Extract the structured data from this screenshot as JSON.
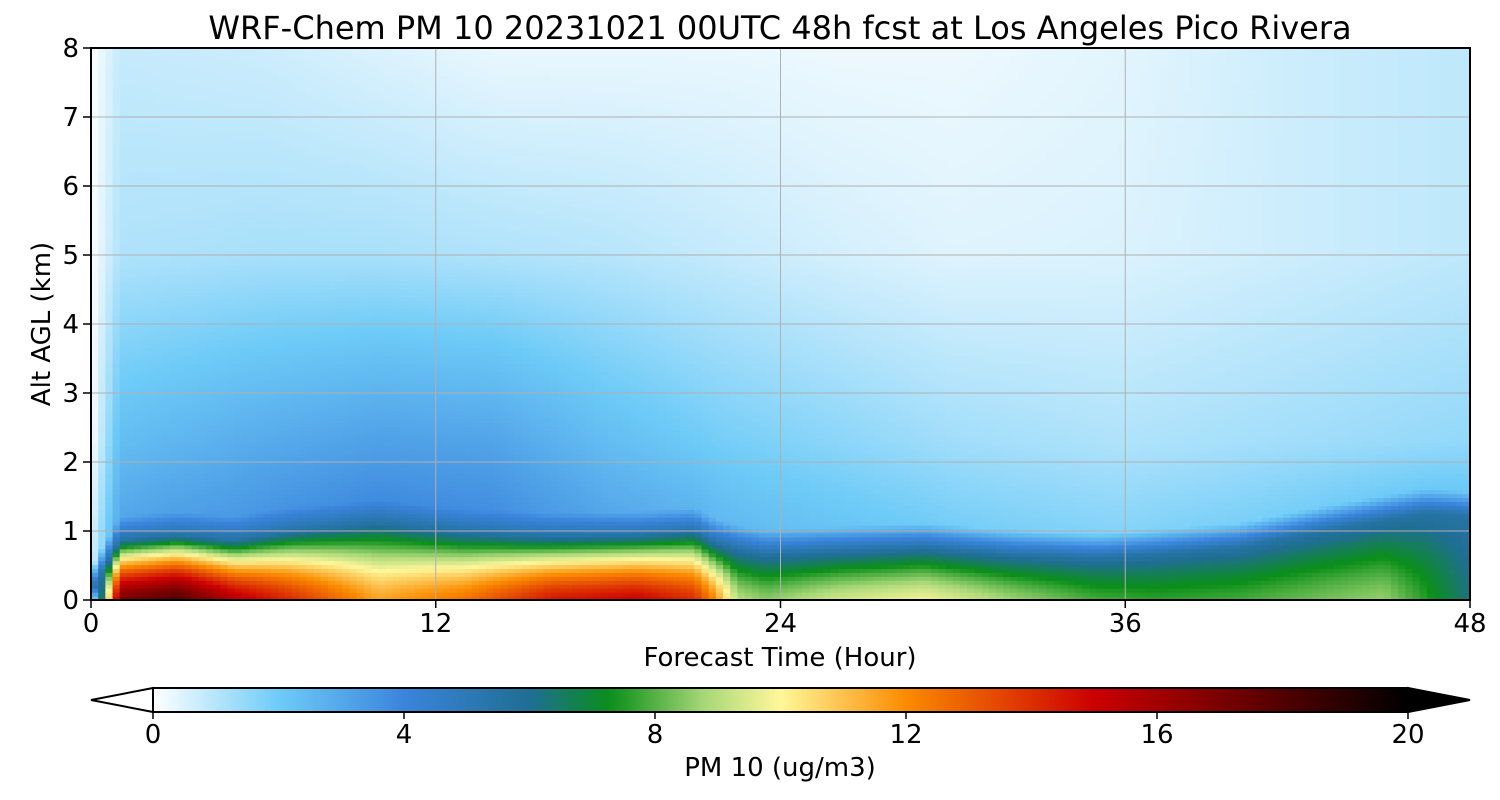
{
  "chart_data": {
    "type": "heatmap",
    "title": "WRF-Chem PM 10  20231021 00UTC 48h fcst at Los Angeles Pico Rivera",
    "xlabel": "Forecast Time (Hour)",
    "ylabel": "Alt AGL (km)",
    "xlim": [
      0,
      48
    ],
    "ylim": [
      0,
      8
    ],
    "x_ticks": [
      "0",
      "12",
      "24",
      "36",
      "48"
    ],
    "y_ticks": [
      "0",
      "1",
      "2",
      "3",
      "4",
      "5",
      "6",
      "7",
      "8"
    ],
    "grid": true,
    "colorbar": {
      "label": "PM 10  (ug/m3)",
      "range": [
        0,
        20
      ],
      "ticks": [
        "0",
        "4",
        "8",
        "12",
        "16",
        "20"
      ],
      "extend": "both",
      "colors": [
        {
          "v": 0,
          "c": "#ffffff"
        },
        {
          "v": 2,
          "c": "#6ecbf7"
        },
        {
          "v": 4,
          "c": "#3a84dc"
        },
        {
          "v": 6,
          "c": "#1f6e93"
        },
        {
          "v": 7.3,
          "c": "#0b8f19"
        },
        {
          "v": 8.8,
          "c": "#a9d879"
        },
        {
          "v": 10,
          "c": "#fff79a"
        },
        {
          "v": 12,
          "c": "#fb8b00"
        },
        {
          "v": 15,
          "c": "#cc0000"
        },
        {
          "v": 17,
          "c": "#7a0000"
        },
        {
          "v": 20,
          "c": "#000000"
        }
      ]
    },
    "surface_profile": {
      "hours": [
        0,
        1,
        3,
        5,
        7,
        10,
        13,
        16,
        19,
        21,
        21.7,
        22.5,
        23.5,
        26,
        29,
        32,
        35,
        37,
        40,
        43,
        45,
        46.5,
        48
      ],
      "surface_value": [
        0,
        17,
        18,
        15.5,
        14,
        11.5,
        12.5,
        14.5,
        15,
        14,
        12,
        9,
        8.5,
        9.3,
        9.8,
        8.7,
        7.8,
        7.6,
        7.8,
        8.3,
        8.6,
        7.5,
        6.2
      ],
      "mixing_height_km": [
        0,
        0.75,
        0.82,
        0.75,
        0.88,
        0.98,
        0.85,
        0.8,
        0.82,
        0.88,
        0.72,
        0.62,
        0.55,
        0.6,
        0.65,
        0.55,
        0.5,
        0.55,
        0.65,
        0.9,
        1.05,
        1.15,
        1.1
      ]
    },
    "aloft_value": {
      "hours": [
        0,
        1,
        6,
        10,
        14,
        18,
        22,
        26,
        30,
        36,
        42,
        48
      ],
      "value_2km": [
        0,
        2.4,
        2.9,
        3.2,
        3.1,
        2.4,
        1.9,
        1.6,
        1.3,
        1.1,
        1.3,
        1.5
      ],
      "value_5km": [
        0,
        1.1,
        1.2,
        1.2,
        1.1,
        1.0,
        0.8,
        0.6,
        0.45,
        0.5,
        0.7,
        0.9
      ],
      "value_8km": [
        0,
        0.8,
        0.7,
        0.5,
        0.3,
        0.3,
        0.3,
        0.25,
        0.25,
        0.4,
        0.7,
        0.9
      ]
    }
  }
}
